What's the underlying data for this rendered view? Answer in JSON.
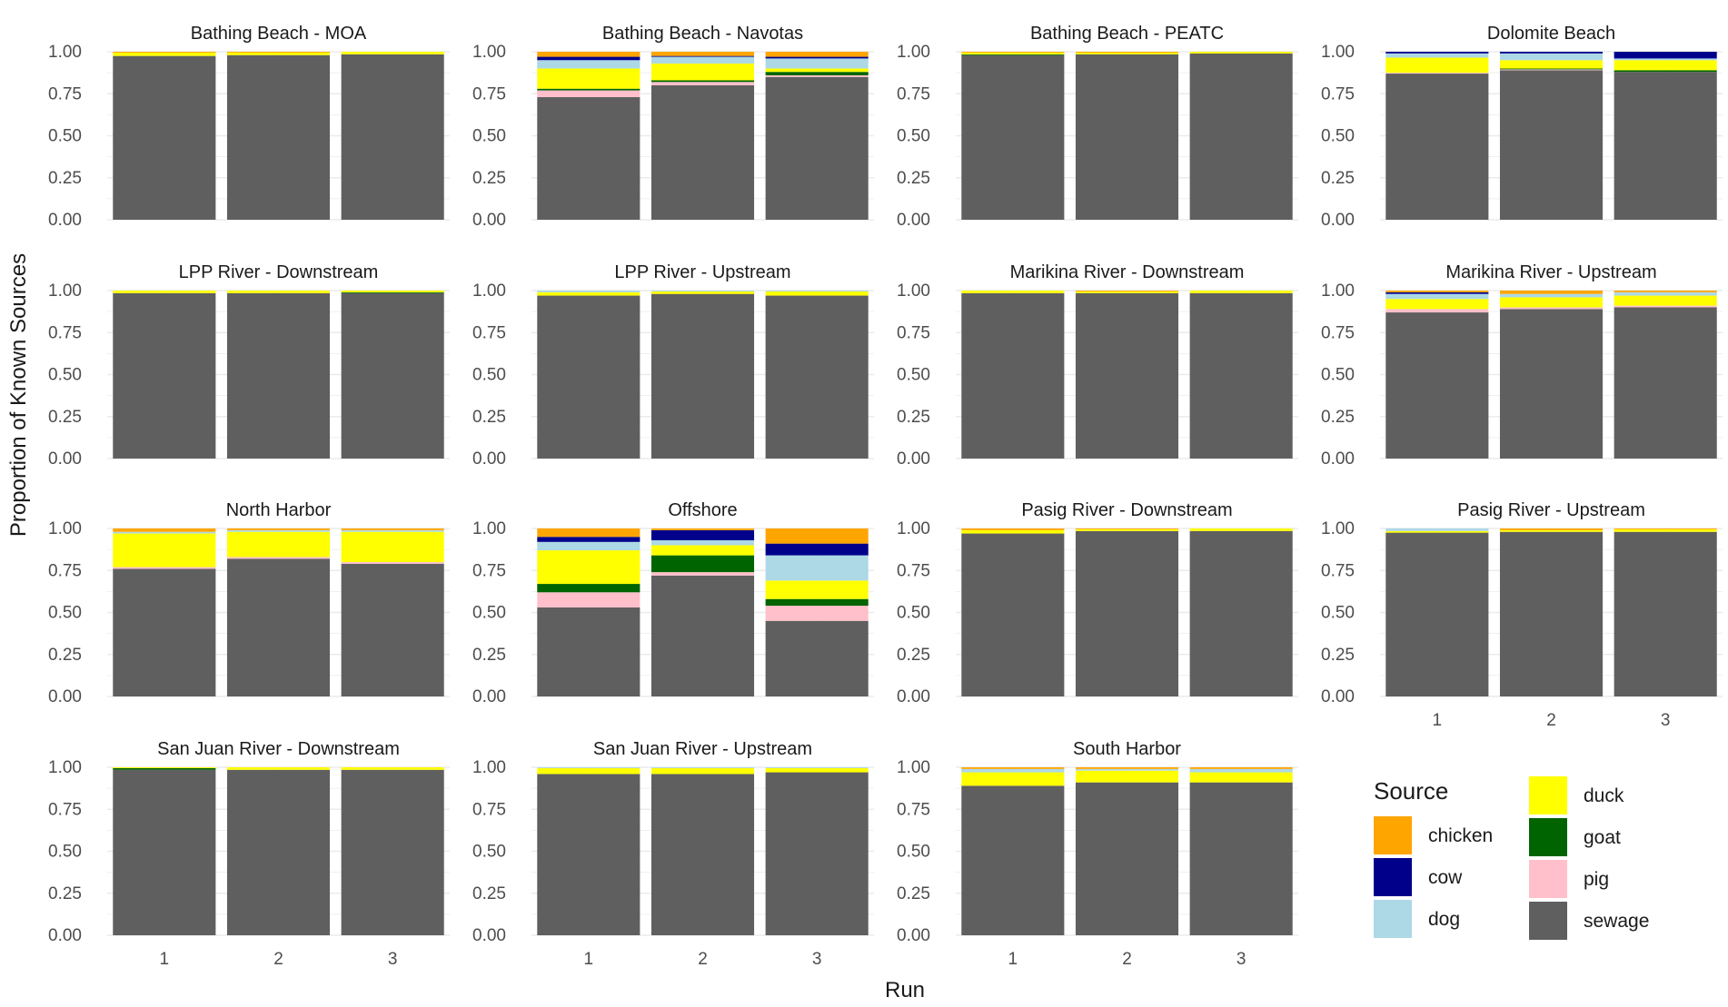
{
  "chart_data": {
    "type": "bar",
    "stacked": true,
    "ylabel": "Proportion of Known Sources",
    "xlabel": "Run",
    "ylim": [
      0,
      1
    ],
    "yticks": [
      "0.00",
      "0.25",
      "0.50",
      "0.75",
      "1.00"
    ],
    "categories": [
      "1",
      "2",
      "3"
    ],
    "grid": true,
    "legend": {
      "title": "Source",
      "position": "bottom-right",
      "columns": [
        [
          "chicken",
          "cow",
          "dog"
        ],
        [
          "duck",
          "goat",
          "pig",
          "sewage"
        ]
      ]
    },
    "stack_order": [
      "sewage",
      "pig",
      "goat",
      "duck",
      "dog",
      "cow",
      "chicken"
    ],
    "colors": {
      "chicken": "#FFA500",
      "cow": "#00008B",
      "dog": "#ADD8E6",
      "duck": "#FFFF00",
      "goat": "#006400",
      "pig": "#FFC0CB",
      "sewage": "#5F5F5F"
    },
    "facets": [
      {
        "title": "Bathing Beach - MOA",
        "runs": [
          {
            "sewage": 0.975,
            "duck": 0.02,
            "chicken": 0.005
          },
          {
            "sewage": 0.98,
            "duck": 0.015,
            "chicken": 0.005
          },
          {
            "sewage": 0.985,
            "duck": 0.015
          }
        ]
      },
      {
        "title": "Bathing Beach - Navotas",
        "runs": [
          {
            "sewage": 0.73,
            "pig": 0.04,
            "goat": 0.01,
            "duck": 0.12,
            "dog": 0.05,
            "cow": 0.02,
            "chicken": 0.03
          },
          {
            "sewage": 0.8,
            "pig": 0.02,
            "goat": 0.01,
            "duck": 0.1,
            "dog": 0.04,
            "cow": 0.005,
            "chicken": 0.025
          },
          {
            "sewage": 0.85,
            "pig": 0.01,
            "goat": 0.02,
            "duck": 0.02,
            "dog": 0.06,
            "cow": 0.01,
            "chicken": 0.03
          }
        ]
      },
      {
        "title": "Bathing Beach - PEATC",
        "runs": [
          {
            "sewage": 0.98,
            "goat": 0.005,
            "duck": 0.01,
            "chicken": 0.005
          },
          {
            "sewage": 0.985,
            "duck": 0.01,
            "chicken": 0.005
          },
          {
            "sewage": 0.99,
            "duck": 0.01
          }
        ]
      },
      {
        "title": "Dolomite Beach",
        "runs": [
          {
            "sewage": 0.87,
            "pig": 0.005,
            "duck": 0.09,
            "dog": 0.025,
            "cow": 0.01
          },
          {
            "sewage": 0.89,
            "pig": 0.005,
            "goat": 0.005,
            "duck": 0.05,
            "dog": 0.04,
            "cow": 0.01
          },
          {
            "sewage": 0.88,
            "goat": 0.01,
            "duck": 0.06,
            "dog": 0.01,
            "cow": 0.04
          }
        ]
      },
      {
        "title": "LPP River - Downstream",
        "runs": [
          {
            "sewage": 0.985,
            "duck": 0.015
          },
          {
            "sewage": 0.985,
            "duck": 0.015
          },
          {
            "sewage": 0.985,
            "goat": 0.005,
            "duck": 0.01
          }
        ]
      },
      {
        "title": "LPP River - Upstream",
        "runs": [
          {
            "sewage": 0.97,
            "duck": 0.02,
            "dog": 0.01
          },
          {
            "sewage": 0.98,
            "duck": 0.015,
            "dog": 0.005
          },
          {
            "sewage": 0.97,
            "duck": 0.025,
            "dog": 0.005
          }
        ]
      },
      {
        "title": "Marikina River - Downstream",
        "runs": [
          {
            "sewage": 0.985,
            "duck": 0.015
          },
          {
            "sewage": 0.985,
            "duck": 0.01,
            "chicken": 0.005
          },
          {
            "sewage": 0.985,
            "duck": 0.015
          }
        ]
      },
      {
        "title": "Marikina River - Upstream",
        "runs": [
          {
            "sewage": 0.87,
            "pig": 0.02,
            "duck": 0.06,
            "dog": 0.03,
            "cow": 0.01,
            "chicken": 0.01
          },
          {
            "sewage": 0.89,
            "pig": 0.01,
            "duck": 0.06,
            "dog": 0.02,
            "chicken": 0.02
          },
          {
            "sewage": 0.9,
            "pig": 0.01,
            "duck": 0.06,
            "dog": 0.02,
            "chicken": 0.01
          }
        ]
      },
      {
        "title": "North Harbor",
        "runs": [
          {
            "sewage": 0.76,
            "pig": 0.01,
            "duck": 0.2,
            "dog": 0.01,
            "chicken": 0.02
          },
          {
            "sewage": 0.82,
            "pig": 0.01,
            "duck": 0.15,
            "dog": 0.01,
            "chicken": 0.01
          },
          {
            "sewage": 0.79,
            "pig": 0.01,
            "duck": 0.18,
            "dog": 0.01,
            "chicken": 0.01
          }
        ]
      },
      {
        "title": "Offshore",
        "runs": [
          {
            "sewage": 0.53,
            "pig": 0.09,
            "goat": 0.05,
            "duck": 0.2,
            "dog": 0.05,
            "cow": 0.03,
            "chicken": 0.05
          },
          {
            "sewage": 0.72,
            "pig": 0.02,
            "goat": 0.1,
            "duck": 0.06,
            "dog": 0.03,
            "cow": 0.06,
            "chicken": 0.01
          },
          {
            "sewage": 0.45,
            "pig": 0.09,
            "goat": 0.04,
            "duck": 0.11,
            "dog": 0.15,
            "cow": 0.07,
            "chicken": 0.09
          }
        ]
      },
      {
        "title": "Pasig River - Downstream",
        "runs": [
          {
            "sewage": 0.97,
            "duck": 0.02,
            "chicken": 0.01
          },
          {
            "sewage": 0.985,
            "duck": 0.01,
            "chicken": 0.005
          },
          {
            "sewage": 0.985,
            "duck": 0.015
          }
        ]
      },
      {
        "title": "Pasig River - Upstream",
        "runs": [
          {
            "sewage": 0.975,
            "duck": 0.01,
            "dog": 0.015
          },
          {
            "sewage": 0.98,
            "duck": 0.01,
            "chicken": 0.01
          },
          {
            "sewage": 0.98,
            "duck": 0.015,
            "chicken": 0.005
          }
        ]
      },
      {
        "title": "San Juan River - Downstream",
        "runs": [
          {
            "sewage": 0.985,
            "goat": 0.01,
            "duck": 0.005
          },
          {
            "sewage": 0.985,
            "duck": 0.015
          },
          {
            "sewage": 0.985,
            "duck": 0.015
          }
        ]
      },
      {
        "title": "San Juan River - Upstream",
        "runs": [
          {
            "sewage": 0.96,
            "duck": 0.035,
            "dog": 0.005
          },
          {
            "sewage": 0.96,
            "duck": 0.035,
            "dog": 0.005
          },
          {
            "sewage": 0.97,
            "duck": 0.025,
            "dog": 0.005
          }
        ]
      },
      {
        "title": "South Harbor",
        "runs": [
          {
            "sewage": 0.89,
            "duck": 0.08,
            "dog": 0.02,
            "chicken": 0.01
          },
          {
            "sewage": 0.91,
            "duck": 0.07,
            "dog": 0.01,
            "chicken": 0.01
          },
          {
            "sewage": 0.91,
            "duck": 0.06,
            "dog": 0.02,
            "chicken": 0.01
          }
        ]
      }
    ]
  }
}
